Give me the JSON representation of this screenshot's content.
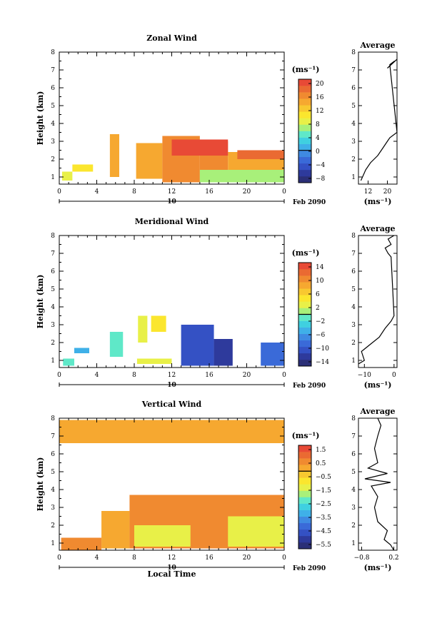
{
  "colors": {
    "scale": [
      "#2b2f77",
      "#2e3a9c",
      "#3451c4",
      "#3a6ad8",
      "#3f8ae2",
      "#3fb0e8",
      "#3fd0e0",
      "#5fe8c8",
      "#a8f07a",
      "#e8f048",
      "#fbe62e",
      "#f8c830",
      "#f6a830",
      "#f08a30",
      "#ea6a32",
      "#e84a36"
    ],
    "axis": "#000000"
  },
  "panels": [
    {
      "title": "Zonal Wind",
      "ylabel": "Height (km)",
      "yticks": [
        "1",
        "2",
        "3",
        "4",
        "5",
        "6",
        "7",
        "8"
      ],
      "xticks": [
        "0",
        "4",
        "8",
        "12",
        "16",
        "20",
        "0"
      ],
      "date_label": "10",
      "date_suffix": "Feb 2090",
      "unit": "(ms⁻¹)",
      "colorbar_ticks": [
        "20",
        "16",
        "12",
        "8",
        "4",
        "0",
        "−4",
        "−8"
      ],
      "profile_title": "Average",
      "profile_xticks": [
        "12",
        "20"
      ],
      "profile_unit": "(ms⁻¹)"
    },
    {
      "title": "Meridional Wind",
      "ylabel": "Height (km)",
      "yticks": [
        "1",
        "2",
        "3",
        "4",
        "5",
        "6",
        "7",
        "8"
      ],
      "xticks": [
        "0",
        "4",
        "8",
        "12",
        "16",
        "20",
        "0"
      ],
      "date_label": "10",
      "date_suffix": "Feb 2090",
      "unit": "(ms⁻¹)",
      "colorbar_ticks": [
        "14",
        "10",
        "6",
        "2",
        "−2",
        "−6",
        "−10",
        "−14"
      ],
      "profile_title": "Average",
      "profile_xticks": [
        "−10",
        "0"
      ],
      "profile_unit": "(ms⁻¹)"
    },
    {
      "title": "Vertical Wind",
      "ylabel": "Height (km)",
      "yticks": [
        "1",
        "2",
        "3",
        "4",
        "5",
        "6",
        "7",
        "8"
      ],
      "xticks": [
        "0",
        "4",
        "8",
        "12",
        "16",
        "20",
        "0"
      ],
      "date_label": "10",
      "date_suffix": "Feb 2090",
      "unit": "(ms⁻¹)",
      "colorbar_ticks": [
        "1.5",
        "0.5",
        "−0.5",
        "−1.5",
        "−2.5",
        "−3.5",
        "−4.5",
        "−5.5"
      ],
      "profile_title": "Average",
      "profile_xticks": [
        "−0.8",
        "0.2"
      ],
      "profile_unit": "(ms⁻¹)"
    }
  ],
  "xlabel": "Local Time",
  "chart_data": [
    {
      "type": "heatmap",
      "title": "Zonal Wind",
      "xlabel": "",
      "ylabel": "Height (km)",
      "xlim": [
        0,
        24
      ],
      "ylim": [
        0.6,
        8
      ],
      "clim": [
        -10,
        22
      ],
      "regions": [
        {
          "x": [
            0.3,
            1.4
          ],
          "y": [
            0.8,
            1.3
          ],
          "value": 8
        },
        {
          "x": [
            1.4,
            3.6
          ],
          "y": [
            1.3,
            1.7
          ],
          "value": 10
        },
        {
          "x": [
            5.4,
            6.4
          ],
          "y": [
            1.0,
            3.4
          ],
          "value": 14
        },
        {
          "x": [
            8.2,
            11.0
          ],
          "y": [
            0.9,
            2.9
          ],
          "value": 14
        },
        {
          "x": [
            11.0,
            15.0
          ],
          "y": [
            0.7,
            3.3
          ],
          "value": 16
        },
        {
          "x": [
            15.0,
            18.0
          ],
          "y": [
            0.7,
            3.0
          ],
          "value": 16
        },
        {
          "x": [
            18.0,
            24.0
          ],
          "y": [
            0.7,
            2.4
          ],
          "value": 14
        },
        {
          "x": [
            12.0,
            18.0
          ],
          "y": [
            2.2,
            3.1
          ],
          "value": 20
        },
        {
          "x": [
            19.0,
            24.0
          ],
          "y": [
            2.0,
            2.5
          ],
          "value": 18
        },
        {
          "x": [
            15.0,
            24.0
          ],
          "y": [
            0.7,
            1.4
          ],
          "value": 6
        }
      ],
      "profile": {
        "xlim": [
          8,
          24
        ],
        "points": [
          [
            9,
            0.8
          ],
          [
            10,
            1.1
          ],
          [
            11,
            1.4
          ],
          [
            13,
            1.8
          ],
          [
            16,
            2.2
          ],
          [
            18,
            2.6
          ],
          [
            20,
            3.0
          ],
          [
            21,
            3.2
          ],
          [
            23,
            3.4
          ],
          [
            24,
            3.5
          ],
          [
            21,
            7.3
          ],
          [
            23,
            7.5
          ],
          [
            20,
            7.1
          ],
          [
            24,
            7.6
          ]
        ]
      }
    },
    {
      "type": "heatmap",
      "title": "Meridional Wind",
      "xlabel": "",
      "ylabel": "Height (km)",
      "xlim": [
        0,
        24
      ],
      "ylim": [
        0.6,
        8
      ],
      "clim": [
        -16,
        16
      ],
      "regions": [
        {
          "x": [
            0.4,
            1.6
          ],
          "y": [
            0.7,
            1.1
          ],
          "value": -2
        },
        {
          "x": [
            1.6,
            3.2
          ],
          "y": [
            1.4,
            1.7
          ],
          "value": -6
        },
        {
          "x": [
            5.4,
            6.8
          ],
          "y": [
            1.2,
            2.6
          ],
          "value": -2
        },
        {
          "x": [
            8.4,
            9.4
          ],
          "y": [
            2.0,
            3.5
          ],
          "value": 2
        },
        {
          "x": [
            9.8,
            11.4
          ],
          "y": [
            2.6,
            3.5
          ],
          "value": 4
        },
        {
          "x": [
            8.3,
            12.0
          ],
          "y": [
            0.8,
            1.1
          ],
          "value": 2
        },
        {
          "x": [
            13.0,
            16.5
          ],
          "y": [
            0.7,
            3.0
          ],
          "value": -12
        },
        {
          "x": [
            16.5,
            18.5
          ],
          "y": [
            0.7,
            2.2
          ],
          "value": -14
        },
        {
          "x": [
            21.5,
            24.0
          ],
          "y": [
            0.7,
            2.0
          ],
          "value": -10
        }
      ],
      "profile": {
        "xlim": [
          -12,
          1
        ],
        "points": [
          [
            -12,
            0.8
          ],
          [
            -10,
            1.0
          ],
          [
            -11,
            1.5
          ],
          [
            -8,
            1.9
          ],
          [
            -5,
            2.3
          ],
          [
            -3,
            2.8
          ],
          [
            -1,
            3.2
          ],
          [
            0,
            3.5
          ],
          [
            -1,
            6.8
          ],
          [
            -2,
            7.0
          ],
          [
            -3,
            7.3
          ],
          [
            -1,
            7.5
          ],
          [
            -2,
            7.8
          ],
          [
            0,
            8.0
          ]
        ]
      }
    },
    {
      "type": "heatmap",
      "title": "Vertical Wind",
      "xlabel": "Local Time",
      "ylabel": "Height (km)",
      "xlim": [
        0,
        24
      ],
      "ylim": [
        0.6,
        8
      ],
      "clim": [
        -6,
        2
      ],
      "regions": [
        {
          "x": [
            0.2,
            4.5
          ],
          "y": [
            0.6,
            1.3
          ],
          "value": 0.5
        },
        {
          "x": [
            4.5,
            7.5
          ],
          "y": [
            0.7,
            2.8
          ],
          "value": 0.0
        },
        {
          "x": [
            7.5,
            24.0
          ],
          "y": [
            0.7,
            3.7
          ],
          "value": 0.5
        },
        {
          "x": [
            8.0,
            14.0
          ],
          "y": [
            0.8,
            2.0
          ],
          "value": -1.5
        },
        {
          "x": [
            18.0,
            24.0
          ],
          "y": [
            0.8,
            2.5
          ],
          "value": -1.5
        },
        {
          "x": [
            0.0,
            24.0
          ],
          "y": [
            6.6,
            7.9
          ],
          "value": 0.3
        }
      ],
      "profile": {
        "xlim": [
          -0.9,
          0.3
        ],
        "points": [
          [
            0.2,
            0.6
          ],
          [
            0.1,
            0.9
          ],
          [
            -0.1,
            1.2
          ],
          [
            0.0,
            1.7
          ],
          [
            -0.3,
            2.2
          ],
          [
            -0.4,
            3.0
          ],
          [
            -0.3,
            3.6
          ],
          [
            -0.5,
            4.2
          ],
          [
            0.1,
            4.4
          ],
          [
            -0.7,
            4.6
          ],
          [
            0.0,
            4.9
          ],
          [
            -0.6,
            5.2
          ],
          [
            -0.3,
            5.5
          ],
          [
            -0.4,
            6.3
          ],
          [
            -0.3,
            7.0
          ],
          [
            -0.2,
            7.6
          ],
          [
            -0.3,
            8.0
          ]
        ]
      }
    }
  ]
}
